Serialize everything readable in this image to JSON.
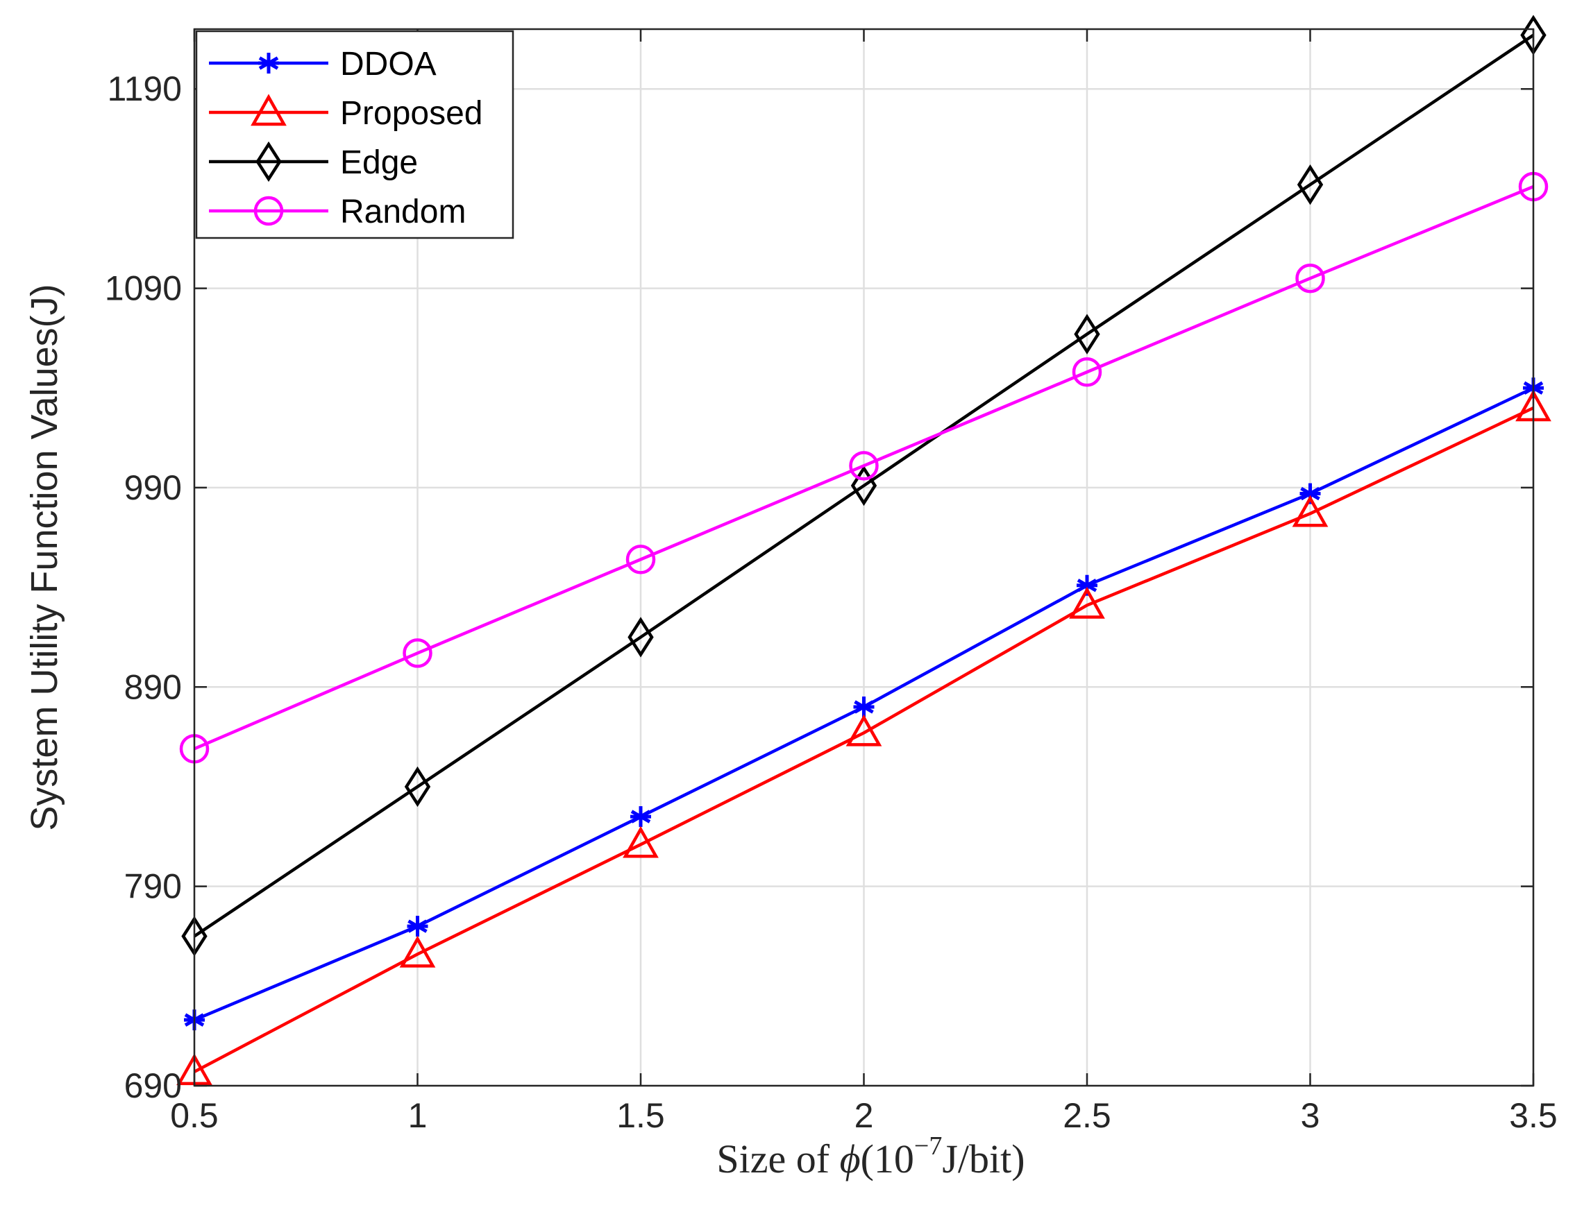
{
  "chart_data": {
    "type": "line",
    "x": [
      0.5,
      1,
      1.5,
      2,
      2.5,
      3,
      3.5
    ],
    "xlim": [
      0.5,
      3.5
    ],
    "ylim": [
      690,
      1220
    ],
    "xticks": [
      "0.5",
      "1",
      "1.5",
      "2",
      "2.5",
      "3",
      "3.5"
    ],
    "yticks": [
      "690",
      "790",
      "890",
      "990",
      "1090",
      "1190"
    ],
    "xlabel": {
      "prefix": "Size of ",
      "symbol": "ϕ",
      "open": "(10",
      "exponent": "−7",
      "unit": "J/bit)"
    },
    "ylabel": "System Utility Function Values(J)",
    "grid": true,
    "legend_position": "top-left",
    "series": [
      {
        "name": "DDOA",
        "color": "#0000ff",
        "marker": "asterisk",
        "values": [
          723,
          770,
          825,
          880,
          941,
          987,
          1040
        ]
      },
      {
        "name": "Proposed",
        "color": "#ff0000",
        "marker": "triangle",
        "values": [
          697,
          756,
          811,
          867,
          931,
          977,
          1030
        ]
      },
      {
        "name": "Edge",
        "color": "#000000",
        "marker": "diamond",
        "values": [
          765,
          840,
          915,
          991,
          1067,
          1142,
          1217
        ]
      },
      {
        "name": "Random",
        "color": "#ff00ff",
        "marker": "circle",
        "values": [
          859,
          907,
          954,
          1001,
          1048,
          1095,
          1141
        ]
      }
    ]
  }
}
